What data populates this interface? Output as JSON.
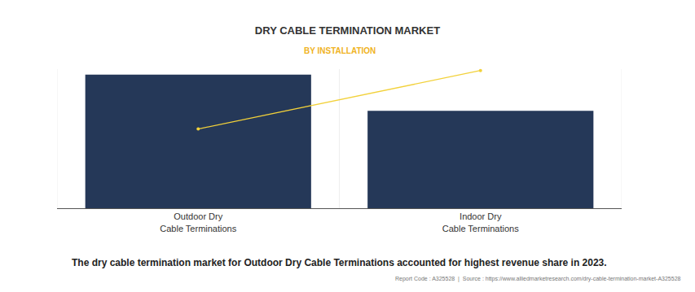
{
  "chart_data": {
    "type": "bar",
    "title": "DRY CABLE TERMINATION MARKET",
    "subtitle": "BY INSTALLATION",
    "categories": [
      "Outdoor Dry Cable Terminations",
      "Indoor Dry Cable Terminations"
    ],
    "series": [
      {
        "type": "bar",
        "color": "#253858",
        "values": [
          96,
          70
        ]
      },
      {
        "type": "line",
        "color": "#f2d13a",
        "marker": "circle",
        "line_style": "solid",
        "values": [
          57,
          99
        ]
      }
    ],
    "ylim": [
      0,
      100
    ],
    "tick_labels": "x",
    "grid": false,
    "annotations": [
      "The dry cable termination market for Outdoor Dry Cable Terminations accounted for highest revenue share in 2023.",
      "Report Code : A325528  |  Source : https://www.alliedmarketresearch.com/dry-cable-termination-market-A325528"
    ]
  }
}
